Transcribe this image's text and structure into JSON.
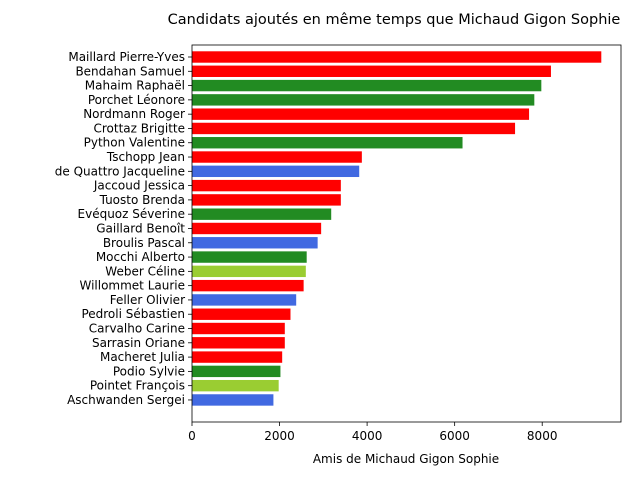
{
  "chart_data": {
    "type": "bar",
    "orientation": "horizontal",
    "title": "Candidats ajoutés en même temps que Michaud Gigon Sophie",
    "xlabel": "Amis de Michaud Gigon Sophie",
    "ylabel": "",
    "xlim": [
      0,
      9800
    ],
    "xticks": [
      0,
      2000,
      4000,
      6000,
      8000
    ],
    "xtick_labels": [
      "0",
      "2000",
      "4000",
      "6000",
      "8000"
    ],
    "grid": false,
    "categories": [
      "Maillard Pierre-Yves",
      "Bendahan Samuel",
      "Mahaim Raphaël",
      "Porchet Léonore",
      "Nordmann Roger",
      "Crottaz Brigitte",
      "Python Valentine",
      "Tschopp Jean",
      "de Quattro Jacqueline",
      "Jaccoud Jessica",
      "Tuosto Brenda",
      "Evéquoz Séverine",
      "Gaillard Benoît",
      "Broulis Pascal",
      "Mocchi Alberto",
      "Weber Céline",
      "Willommet Laurie",
      "Feller Olivier",
      "Pedroli Sébastien",
      "Carvalho Carine",
      "Sarrasin Oriane",
      "Macheret Julia",
      "Podio Sylvie",
      "Pointet François",
      "Aschwanden Sergei"
    ],
    "values": [
      9350,
      8200,
      7980,
      7820,
      7700,
      7380,
      6180,
      3880,
      3820,
      3400,
      3400,
      3180,
      2950,
      2870,
      2620,
      2600,
      2550,
      2380,
      2250,
      2120,
      2120,
      2060,
      2020,
      1980,
      1860
    ],
    "colors": [
      "#ff0000",
      "#ff0000",
      "#228b22",
      "#228b22",
      "#ff0000",
      "#ff0000",
      "#228b22",
      "#ff0000",
      "#4169e1",
      "#ff0000",
      "#ff0000",
      "#228b22",
      "#ff0000",
      "#4169e1",
      "#228b22",
      "#9acd32",
      "#ff0000",
      "#4169e1",
      "#ff0000",
      "#ff0000",
      "#ff0000",
      "#ff0000",
      "#228b22",
      "#9acd32",
      "#4169e1"
    ]
  }
}
